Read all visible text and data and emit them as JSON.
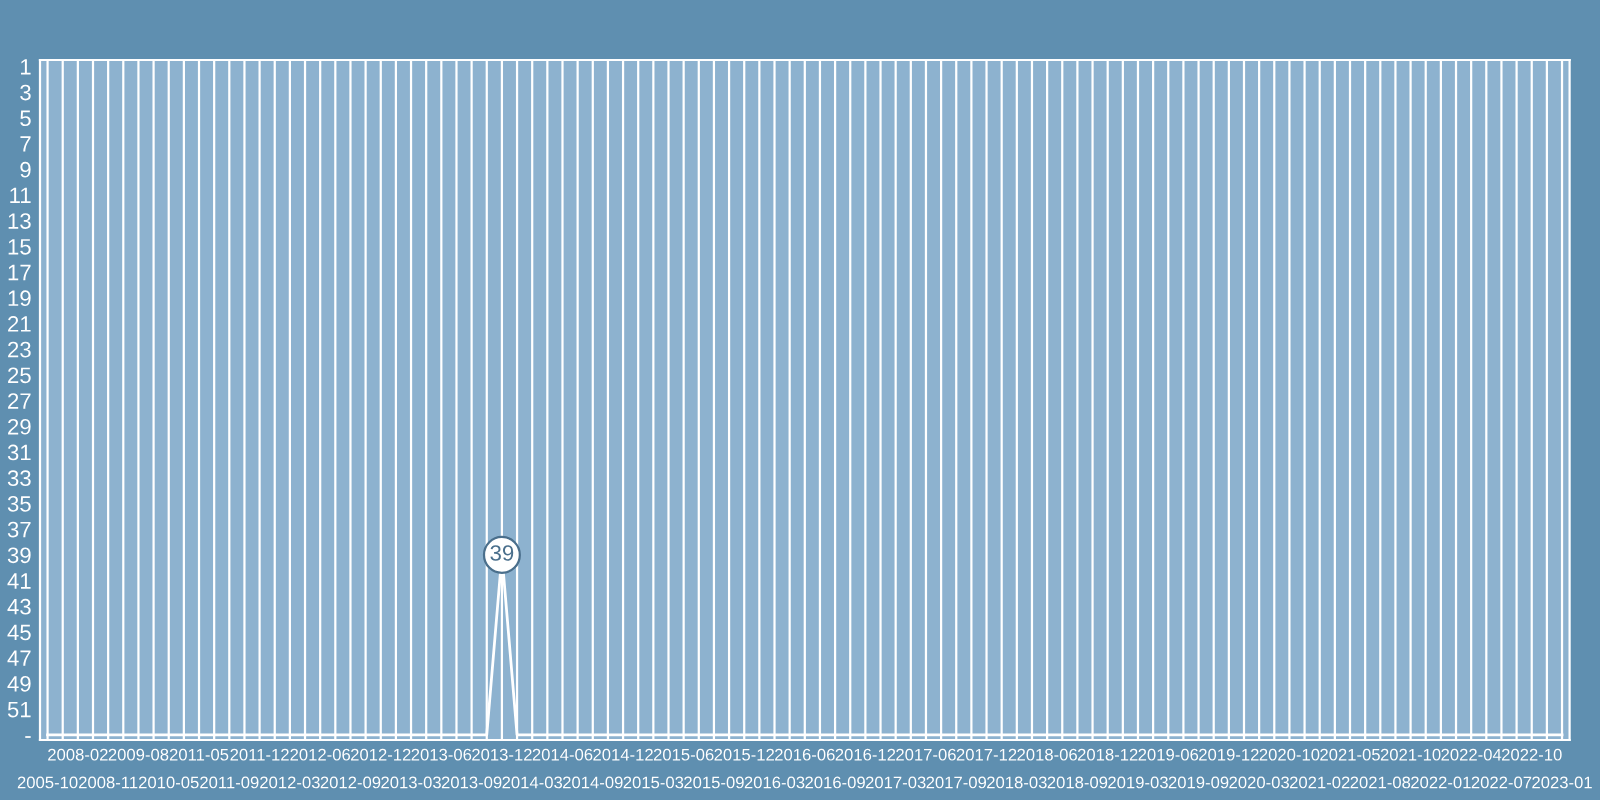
{
  "chart_data": {
    "type": "line",
    "categories": [
      "2005-10",
      null,
      "2008-02",
      null,
      "2008-11",
      null,
      "2009-08",
      null,
      "2010-05",
      null,
      "2011-05",
      null,
      "2011-09",
      null,
      "2011-12",
      null,
      "2012-03",
      null,
      "2012-06",
      null,
      "2012-09",
      null,
      "2012-12",
      null,
      "2013-03",
      null,
      "2013-06",
      null,
      "2013-09",
      null,
      "2013-12",
      null,
      "2014-03",
      null,
      "2014-06",
      null,
      "2014-09",
      null,
      "2014-12",
      null,
      "2015-03",
      null,
      "2015-06",
      null,
      "2015-09",
      null,
      "2015-12",
      null,
      "2016-03",
      null,
      "2016-06",
      null,
      "2016-09",
      null,
      "2016-12",
      null,
      "2017-03",
      null,
      "2017-06",
      null,
      "2017-09",
      null,
      "2017-12",
      null,
      "2018-03",
      null,
      "2018-06",
      null,
      "2018-09",
      null,
      "2018-12",
      null,
      "2019-03",
      null,
      "2019-06",
      null,
      "2019-09",
      null,
      "2019-12",
      null,
      "2020-03",
      null,
      "2020-10",
      null,
      "2021-02",
      null,
      "2021-05",
      null,
      "2021-08",
      null,
      "2021-10",
      null,
      "2022-01",
      null,
      "2022-04",
      null,
      "2022-07",
      null,
      "2022-10",
      null,
      "2023-01"
    ],
    "series": [
      {
        "color": "#ffffff",
        "values": [
          53,
          53,
          53,
          53,
          53,
          53,
          53,
          53,
          53,
          53,
          53,
          53,
          53,
          53,
          53,
          53,
          53,
          53,
          53,
          53,
          53,
          53,
          53,
          53,
          53,
          53,
          53,
          53,
          53,
          53,
          39,
          53,
          53,
          53,
          53,
          53,
          53,
          53,
          53,
          53,
          53,
          53,
          53,
          53,
          53,
          53,
          53,
          53,
          53,
          53,
          53,
          53,
          53,
          53,
          53,
          53,
          53,
          53,
          53,
          53,
          53,
          53,
          53,
          53,
          53,
          53,
          53,
          53,
          53,
          53,
          53,
          53,
          53,
          53,
          53,
          53,
          53,
          53,
          53,
          53,
          53,
          53,
          53,
          53,
          53,
          53,
          53,
          53,
          53,
          53,
          53,
          53,
          53,
          53,
          53,
          53,
          53,
          53,
          53,
          53,
          53
        ],
        "value_labels": [
          null,
          null,
          null,
          null,
          null,
          null,
          null,
          null,
          null,
          null,
          null,
          null,
          null,
          null,
          null,
          null,
          null,
          null,
          null,
          null,
          null,
          null,
          null,
          null,
          null,
          null,
          null,
          null,
          null,
          null,
          "39",
          null,
          null,
          null,
          null,
          null,
          null,
          null,
          null,
          null,
          null,
          null,
          null,
          null,
          null,
          null,
          null,
          null,
          null,
          null,
          null,
          null,
          null,
          null,
          null,
          null,
          null,
          null,
          null,
          null,
          null,
          null,
          null,
          null,
          null,
          null,
          null,
          null,
          null,
          null,
          null,
          null,
          null,
          null,
          null,
          null,
          null,
          null,
          null,
          null,
          null,
          null,
          null,
          null,
          null,
          null,
          null,
          null,
          null,
          null,
          null,
          null,
          null,
          null,
          null,
          null,
          null,
          null,
          null,
          null,
          null
        ]
      }
    ],
    "ylim": [
      53.4,
      0.5
    ],
    "yticks": [
      1,
      3,
      5,
      7,
      9,
      11,
      13,
      15,
      17,
      19,
      21,
      23,
      25,
      27,
      29,
      31,
      33,
      35,
      37,
      39,
      41,
      43,
      45,
      47,
      49,
      51,
      {
        "value": 53,
        "label": "-"
      }
    ],
    "grid": "x",
    "marker": "none",
    "line_style": "solid"
  }
}
